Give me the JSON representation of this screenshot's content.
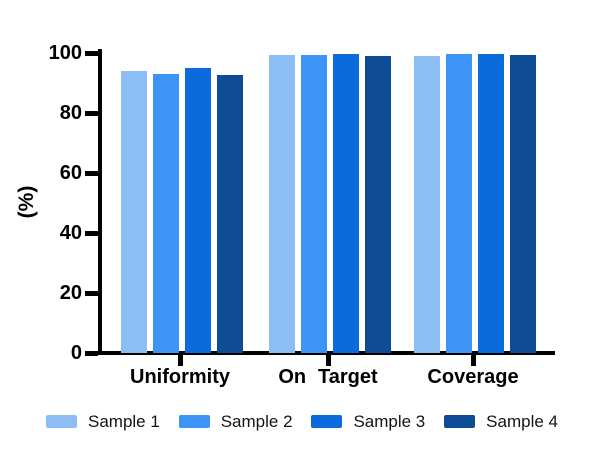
{
  "chart_data": {
    "type": "bar",
    "title": "",
    "xlabel": "",
    "ylabel": "(%)",
    "categories": [
      "Uniformity",
      "On Target",
      "Coverage"
    ],
    "series": [
      {
        "name": "Sample 1",
        "color": "#8CBEF5",
        "values": [
          94.0,
          99.3,
          99.0
        ]
      },
      {
        "name": "Sample 2",
        "color": "#3E93F6",
        "values": [
          93.0,
          99.2,
          99.8
        ]
      },
      {
        "name": "Sample 3",
        "color": "#0B6BDC",
        "values": [
          94.9,
          99.5,
          99.6
        ]
      },
      {
        "name": "Sample 4",
        "color": "#0E4D96",
        "values": [
          92.6,
          99.0,
          99.3
        ]
      }
    ],
    "yticks": [
      0,
      20,
      40,
      60,
      80,
      100
    ],
    "ylim": [
      0,
      100
    ],
    "grid": false,
    "legend_position": "bottom",
    "axis_color": "#000000",
    "background_color": "#FFFFFF"
  }
}
